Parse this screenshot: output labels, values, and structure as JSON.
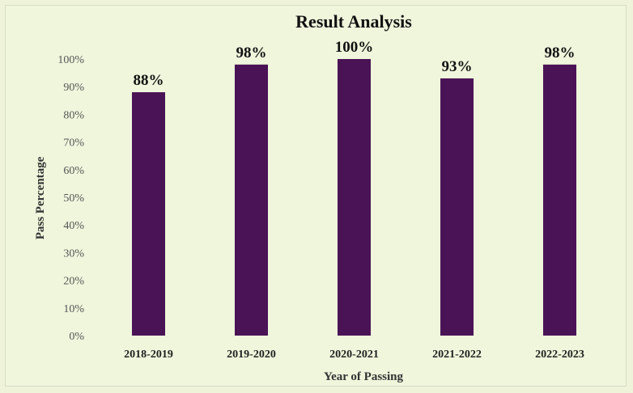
{
  "chart_data": {
    "type": "bar",
    "title": "Result Analysis",
    "xlabel": "Year of Passing",
    "ylabel": "Pass Percentage",
    "categories": [
      "2018-2019",
      "2019-2020",
      "2020-2021",
      "2021-2022",
      "2022-2023"
    ],
    "values": [
      88,
      98,
      100,
      93,
      98
    ],
    "data_labels": [
      "88%",
      "98%",
      "100%",
      "93%",
      "98%"
    ],
    "yticks": [
      "0%",
      "10%",
      "20%",
      "30%",
      "40%",
      "50%",
      "60%",
      "70%",
      "80%",
      "90%",
      "100%"
    ],
    "ylim": [
      0,
      100
    ],
    "grid": false,
    "bar_color": "#4a1356",
    "background_color": "#eff6dc"
  }
}
